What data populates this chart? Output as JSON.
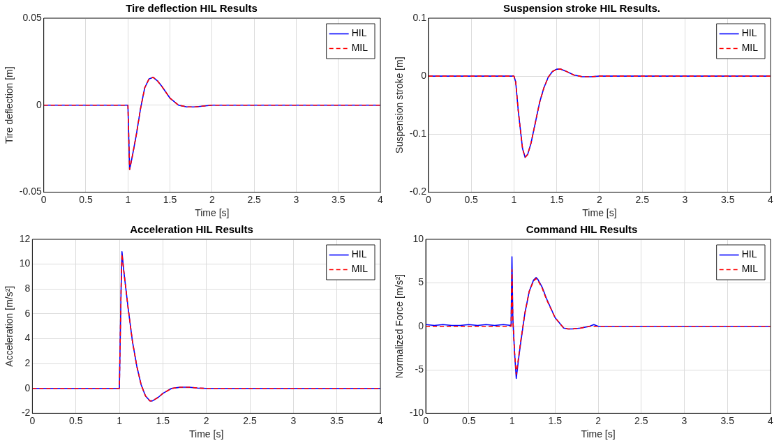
{
  "chart_data": [
    {
      "type": "line",
      "title": "Tire deflection HIL Results",
      "xlabel": "Time [s]",
      "ylabel": "Tire deflection [m]",
      "xlim": [
        0,
        4
      ],
      "xticks": [
        0,
        0.5,
        1,
        1.5,
        2,
        2.5,
        3,
        3.5,
        4
      ],
      "ylim": [
        -0.05,
        0.05
      ],
      "yticks": [
        -0.05,
        0,
        0.05
      ],
      "grid": true,
      "legend": "top right",
      "marker": "none",
      "series": [
        {
          "name": "HIL",
          "color": "#0000ff",
          "line_style": "solid",
          "x": [
            0,
            1.0,
            1.02,
            1.05,
            1.1,
            1.15,
            1.2,
            1.25,
            1.3,
            1.35,
            1.4,
            1.5,
            1.6,
            1.7,
            1.8,
            1.9,
            2.0,
            4.0
          ],
          "values": [
            0,
            0,
            -0.037,
            -0.03,
            -0.017,
            -0.002,
            0.01,
            0.015,
            0.016,
            0.014,
            0.011,
            0.004,
            0,
            -0.001,
            -0.001,
            -0.0005,
            0,
            0
          ]
        },
        {
          "name": "MIL",
          "color": "#ff0000",
          "line_style": "dashed",
          "x": [
            0,
            1.0,
            1.02,
            1.05,
            1.1,
            1.15,
            1.2,
            1.25,
            1.3,
            1.35,
            1.4,
            1.5,
            1.6,
            1.7,
            1.8,
            1.9,
            2.0,
            4.0
          ],
          "values": [
            0,
            0,
            -0.037,
            -0.03,
            -0.017,
            -0.002,
            0.01,
            0.015,
            0.016,
            0.014,
            0.011,
            0.004,
            0,
            -0.001,
            -0.001,
            -0.0005,
            0,
            0
          ]
        }
      ]
    },
    {
      "type": "line",
      "title": "Suspension stroke HIL Results.",
      "xlabel": "Time [s]",
      "ylabel": "Suspension stroke [m]",
      "xlim": [
        0,
        4
      ],
      "xticks": [
        0,
        0.5,
        1,
        1.5,
        2,
        2.5,
        3,
        3.5,
        4
      ],
      "ylim": [
        -0.2,
        0.1
      ],
      "yticks": [
        -0.2,
        -0.1,
        0,
        0.1
      ],
      "grid": true,
      "legend": "top right",
      "marker": "none",
      "series": [
        {
          "name": "HIL",
          "color": "#0000ff",
          "line_style": "solid",
          "x": [
            0,
            1.0,
            1.02,
            1.05,
            1.1,
            1.13,
            1.16,
            1.2,
            1.25,
            1.3,
            1.35,
            1.4,
            1.45,
            1.5,
            1.55,
            1.6,
            1.7,
            1.8,
            1.9,
            2.0,
            4.0
          ],
          "values": [
            0,
            0,
            -0.01,
            -0.06,
            -0.125,
            -0.14,
            -0.135,
            -0.115,
            -0.08,
            -0.045,
            -0.02,
            -0.002,
            0.008,
            0.012,
            0.012,
            0.009,
            0.002,
            -0.001,
            -0.001,
            0,
            0
          ]
        },
        {
          "name": "MIL",
          "color": "#ff0000",
          "line_style": "dashed",
          "x": [
            0,
            1.0,
            1.02,
            1.05,
            1.1,
            1.13,
            1.16,
            1.2,
            1.25,
            1.3,
            1.35,
            1.4,
            1.45,
            1.5,
            1.55,
            1.6,
            1.7,
            1.8,
            1.9,
            2.0,
            4.0
          ],
          "values": [
            0,
            0,
            -0.01,
            -0.06,
            -0.125,
            -0.14,
            -0.135,
            -0.115,
            -0.08,
            -0.045,
            -0.02,
            -0.002,
            0.008,
            0.012,
            0.012,
            0.009,
            0.002,
            -0.001,
            -0.001,
            0,
            0
          ]
        }
      ]
    },
    {
      "type": "line",
      "title": "Acceleration HIL Results",
      "xlabel": "Time [s]",
      "ylabel": "Acceleration [m/s²]",
      "xlim": [
        0,
        4
      ],
      "xticks": [
        0,
        0.5,
        1,
        1.5,
        2,
        2.5,
        3,
        3.5,
        4
      ],
      "ylim": [
        -2,
        12
      ],
      "yticks": [
        -2,
        0,
        2,
        4,
        6,
        8,
        10,
        12
      ],
      "grid": true,
      "legend": "top right",
      "marker": "none",
      "series": [
        {
          "name": "HIL",
          "color": "#0000ff",
          "line_style": "solid",
          "x": [
            0,
            1.0,
            1.02,
            1.03,
            1.05,
            1.1,
            1.15,
            1.2,
            1.25,
            1.3,
            1.35,
            1.38,
            1.45,
            1.5,
            1.6,
            1.7,
            1.75,
            1.8,
            1.9,
            2.0,
            4.0
          ],
          "values": [
            0,
            0,
            8,
            11,
            9.5,
            6.5,
            3.8,
            1.8,
            0.3,
            -0.6,
            -1,
            -1,
            -0.7,
            -0.4,
            0,
            0.1,
            0.1,
            0.1,
            0.03,
            0,
            0
          ]
        },
        {
          "name": "MIL",
          "color": "#ff0000",
          "line_style": "dashed",
          "x": [
            0,
            1.0,
            1.02,
            1.03,
            1.05,
            1.1,
            1.15,
            1.2,
            1.25,
            1.3,
            1.35,
            1.38,
            1.45,
            1.5,
            1.6,
            1.7,
            1.75,
            1.8,
            1.9,
            2.0,
            4.0
          ],
          "values": [
            0,
            0,
            8,
            10.8,
            9.5,
            6.5,
            3.8,
            1.8,
            0.3,
            -0.6,
            -1,
            -1,
            -0.7,
            -0.4,
            0,
            0.1,
            0.1,
            0.1,
            0.03,
            0,
            0
          ]
        }
      ]
    },
    {
      "type": "line",
      "title": "Command HIL Results",
      "xlabel": "Time [s]",
      "ylabel": "Normalized Force [m/s²]",
      "xlim": [
        0,
        4
      ],
      "xticks": [
        0,
        0.5,
        1,
        1.5,
        2,
        2.5,
        3,
        3.5,
        4
      ],
      "ylim": [
        -10,
        10
      ],
      "yticks": [
        -10,
        -5,
        0,
        5,
        10
      ],
      "grid": true,
      "legend": "top right",
      "marker": "none",
      "series": [
        {
          "name": "HIL",
          "color": "#0000ff",
          "line_style": "solid",
          "x": [
            0,
            0.1,
            0.2,
            0.3,
            0.4,
            0.5,
            0.6,
            0.7,
            0.8,
            0.9,
            0.99,
            1.0,
            1.01,
            1.03,
            1.05,
            1.08,
            1.1,
            1.15,
            1.2,
            1.25,
            1.28,
            1.3,
            1.35,
            1.4,
            1.5,
            1.6,
            1.65,
            1.7,
            1.8,
            1.9,
            1.95,
            2.0,
            4.0
          ],
          "values": [
            0.2,
            0.1,
            0.2,
            0.1,
            0.1,
            0.2,
            0.1,
            0.2,
            0.1,
            0.2,
            0.1,
            8,
            1,
            -3,
            -6,
            -3.5,
            -2,
            1.5,
            4,
            5.3,
            5.6,
            5.4,
            4.5,
            3.2,
            1,
            -0.2,
            -0.3,
            -0.3,
            -0.2,
            0,
            0.2,
            0,
            0
          ]
        },
        {
          "name": "MIL",
          "color": "#ff0000",
          "line_style": "dashed",
          "x": [
            0,
            0.1,
            0.2,
            0.3,
            0.4,
            0.5,
            0.6,
            0.7,
            0.8,
            0.9,
            0.99,
            1.0,
            1.01,
            1.03,
            1.05,
            1.08,
            1.1,
            1.15,
            1.2,
            1.25,
            1.28,
            1.3,
            1.35,
            1.4,
            1.5,
            1.6,
            1.65,
            1.7,
            1.8,
            1.9,
            1.95,
            2.0,
            4.0
          ],
          "values": [
            0,
            0,
            0,
            0,
            0,
            0,
            0,
            0,
            0,
            0,
            0,
            6.5,
            1,
            -3,
            -5.5,
            -3.3,
            -1.8,
            1.5,
            4,
            5.2,
            5.5,
            5.3,
            4.4,
            3.1,
            1,
            -0.2,
            -0.3,
            -0.3,
            -0.2,
            0,
            0,
            0,
            0
          ]
        }
      ]
    }
  ]
}
